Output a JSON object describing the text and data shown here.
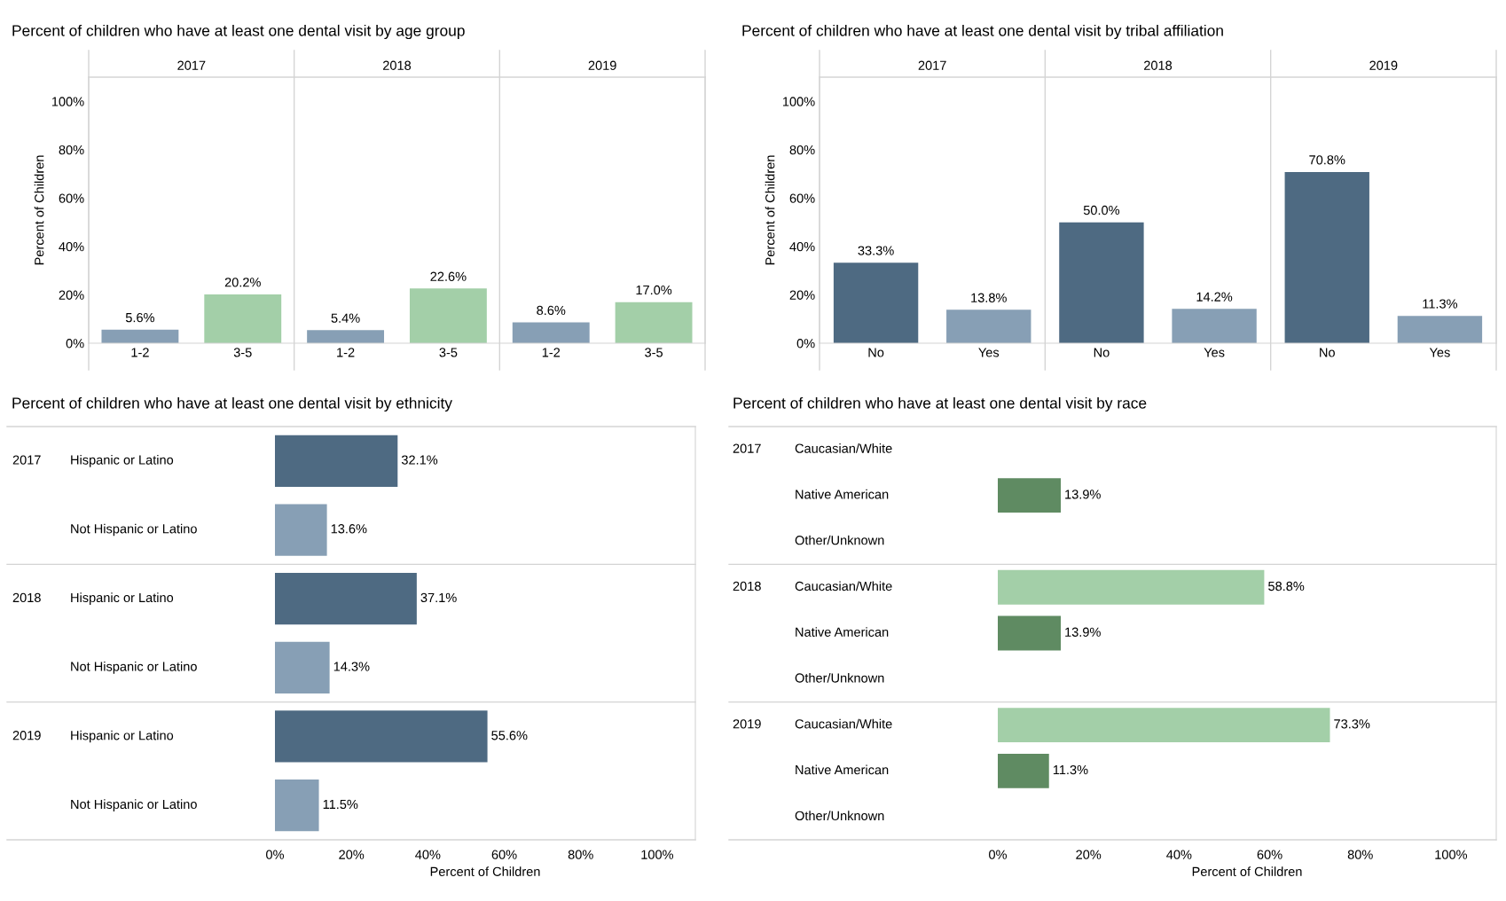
{
  "chart_data": [
    {
      "type": "bar",
      "title": "Percent of children who have at least one dental visit by age group",
      "ylabel": "Percent of Children",
      "categories": [
        "1-2",
        "3-5",
        "1-2",
        "3-5",
        "1-2",
        "3-5"
      ],
      "values": [
        5.6,
        20.2,
        5.4,
        22.6,
        8.6,
        17.0
      ],
      "value_labels": [
        "5.6%",
        "20.2%",
        "5.4%",
        "22.6%",
        "8.6%",
        "17.0%"
      ],
      "colors": [
        "#879fb5",
        "#a3cfa8",
        "#879fb5",
        "#a3cfa8",
        "#879fb5",
        "#a3cfa8"
      ],
      "annotations": [
        "2017",
        "2018",
        "2019"
      ],
      "ylim": [
        0,
        110
      ],
      "yticks": [
        {
          "value": 0,
          "label": "0%"
        },
        {
          "value": 20,
          "label": "20%"
        },
        {
          "value": 40,
          "label": "40%"
        },
        {
          "value": 60,
          "label": "60%"
        },
        {
          "value": 80,
          "label": "80%"
        },
        {
          "value": 100,
          "label": "100%"
        }
      ]
    },
    {
      "type": "bar",
      "title": "Percent of children who have at least one dental visit by tribal affiliation",
      "ylabel": "Percent of Children",
      "categories": [
        "No",
        "Yes",
        "No",
        "Yes",
        "No",
        "Yes"
      ],
      "values": [
        33.3,
        13.8,
        50.0,
        14.2,
        70.8,
        11.3
      ],
      "value_labels": [
        "33.3%",
        "13.8%",
        "50.0%",
        "14.2%",
        "70.8%",
        "11.3%"
      ],
      "colors": [
        "#4e6a82",
        "#879fb5",
        "#4e6a82",
        "#879fb5",
        "#4e6a82",
        "#879fb5"
      ],
      "annotations": [
        "2017",
        "2018",
        "2019"
      ],
      "ylim": [
        0,
        110
      ],
      "yticks": [
        {
          "value": 0,
          "label": "0%"
        },
        {
          "value": 20,
          "label": "20%"
        },
        {
          "value": 40,
          "label": "40%"
        },
        {
          "value": 60,
          "label": "60%"
        },
        {
          "value": 80,
          "label": "80%"
        },
        {
          "value": 100,
          "label": "100%"
        }
      ]
    },
    {
      "type": "bar",
      "orientation": "horizontal",
      "title": "Percent of children who have at least one dental visit by ethnicity",
      "xlabel": "Percent of Children",
      "categories": [
        "Hispanic or Latino",
        "Not Hispanic or Latino",
        "Hispanic or Latino",
        "Not Hispanic or Latino",
        "Hispanic or Latino",
        "Not Hispanic or Latino"
      ],
      "values": [
        32.1,
        13.6,
        37.1,
        14.3,
        55.6,
        11.5
      ],
      "value_labels": [
        "32.1%",
        "13.6%",
        "37.1%",
        "14.3%",
        "55.6%",
        "11.5%"
      ],
      "colors": [
        "#4e6a82",
        "#879fb5",
        "#4e6a82",
        "#879fb5",
        "#4e6a82",
        "#879fb5"
      ],
      "annotations": [
        "2017",
        "2018",
        "2019"
      ],
      "xlim": [
        0,
        110
      ],
      "xticks": [
        {
          "value": 0,
          "label": "0%"
        },
        {
          "value": 20,
          "label": "20%"
        },
        {
          "value": 40,
          "label": "40%"
        },
        {
          "value": 60,
          "label": "60%"
        },
        {
          "value": 80,
          "label": "80%"
        },
        {
          "value": 100,
          "label": "100%"
        }
      ]
    },
    {
      "type": "bar",
      "orientation": "horizontal",
      "title": "Percent of children who have at least one dental visit by race",
      "xlabel": "Percent of Children",
      "categories": [
        "Caucasian/White",
        "Native American",
        "Other/Unknown",
        "Caucasian/White",
        "Native American",
        "Other/Unknown",
        "Caucasian/White",
        "Native American",
        "Other/Unknown"
      ],
      "values": [
        null,
        13.9,
        null,
        58.8,
        13.9,
        null,
        73.3,
        11.3,
        null
      ],
      "value_labels": [
        null,
        "13.9%",
        null,
        "58.8%",
        "13.9%",
        null,
        "73.3%",
        "11.3%",
        null
      ],
      "colors": [
        "#a3cfa8",
        "#5f8b62",
        "#c8c8c8",
        "#a3cfa8",
        "#5f8b62",
        "#c8c8c8",
        "#a3cfa8",
        "#5f8b62",
        "#c8c8c8"
      ],
      "annotations": [
        "2017",
        "2018",
        "2019"
      ],
      "xlim": [
        0,
        110
      ],
      "xticks": [
        {
          "value": 0,
          "label": "0%"
        },
        {
          "value": 20,
          "label": "20%"
        },
        {
          "value": 40,
          "label": "40%"
        },
        {
          "value": 60,
          "label": "60%"
        },
        {
          "value": 80,
          "label": "80%"
        },
        {
          "value": 100,
          "label": "100%"
        }
      ]
    }
  ]
}
